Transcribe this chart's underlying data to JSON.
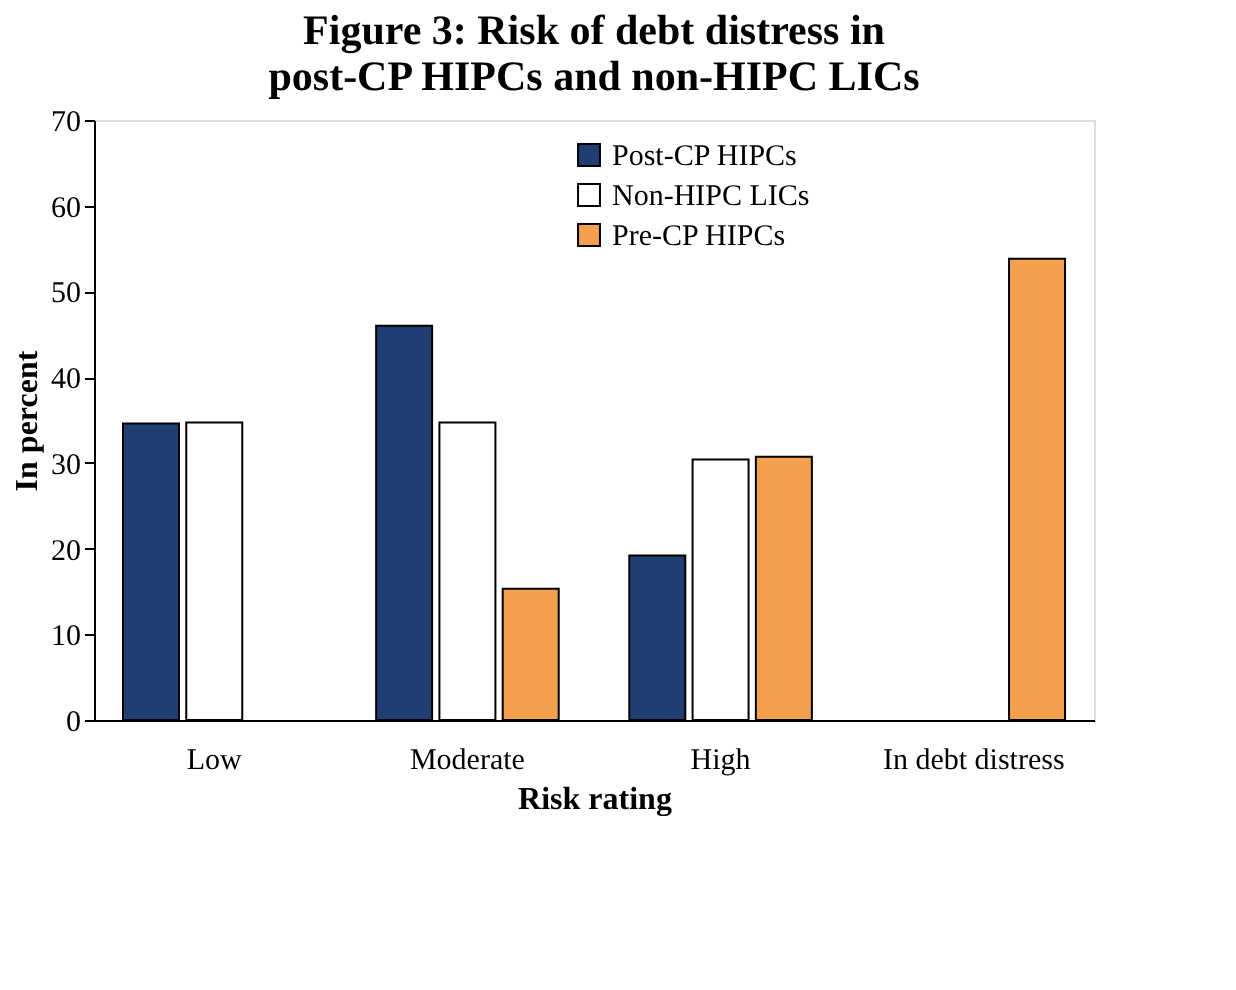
{
  "chart_data": {
    "type": "bar",
    "title": "Figure 3: Risk of debt distress in\npost-CP HIPCs and non-HIPC LICs",
    "xlabel": "Risk rating",
    "ylabel": "In percent",
    "categories": [
      "Low",
      "Moderate",
      "High",
      "In debt distress"
    ],
    "series": [
      {
        "name": "Post-CP HIPCs",
        "color": "#1f3f73",
        "values": [
          34.6,
          46,
          19.2,
          null
        ]
      },
      {
        "name": "Non-HIPC LICs",
        "color": "#ffffff",
        "values": [
          34.7,
          34.7,
          30.4,
          null
        ]
      },
      {
        "name": "Pre-CP HIPCs",
        "color": "#f5a04f",
        "values": [
          null,
          15.3,
          30.7,
          53.8
        ]
      }
    ],
    "ylim": [
      0,
      70
    ],
    "yticks": [
      0,
      10,
      20,
      30,
      40,
      50,
      60,
      70
    ],
    "grid": false,
    "legend": "top"
  }
}
